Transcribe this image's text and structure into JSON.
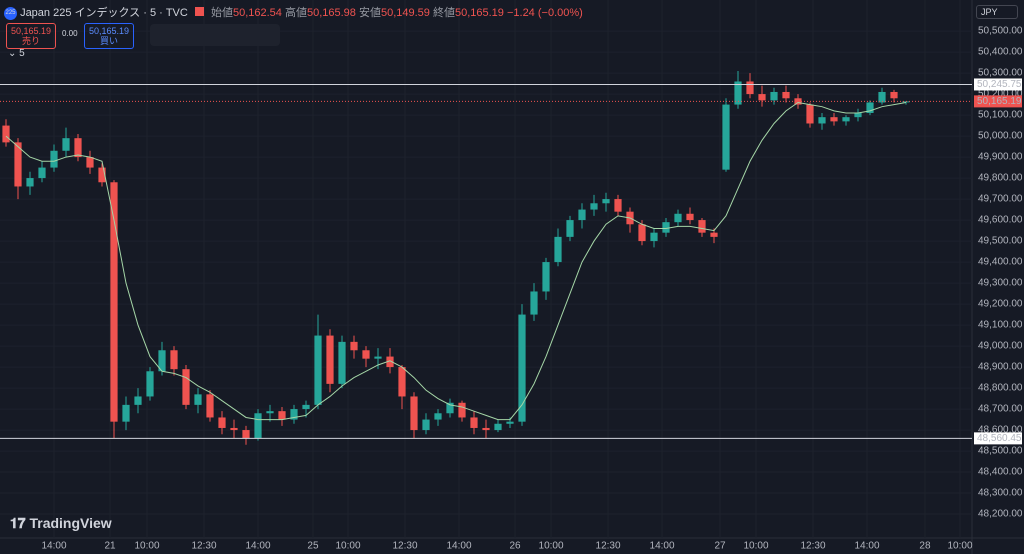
{
  "header": {
    "icon": "225",
    "symbol": "Japan 225 インデックス · 5 · TVC",
    "open_label": "始値",
    "open": "50,162.54",
    "high_label": "高値",
    "high": "50,165.98",
    "low_label": "安値",
    "low": "50,149.59",
    "close_label": "終値",
    "close": "50,165.19",
    "change": "−1.24 (−0.00%)"
  },
  "trade": {
    "sell_price": "50,165.19",
    "sell": "売り",
    "spread": "0.00",
    "buy_price": "50,165.19",
    "buy": "買い",
    "interval": "5"
  },
  "currency": "JPY",
  "logo": "TradingView",
  "chart_data": {
    "type": "candlestick",
    "up_color": "#26a69a",
    "down_color": "#ef5350",
    "ma_color": "#a5d6a7",
    "open": [
      50050,
      49970,
      49760,
      49800,
      49850,
      49930,
      49990,
      49900,
      49850,
      49780,
      48640,
      48720,
      48760,
      48880,
      48980,
      48890,
      48720,
      48770,
      48660,
      48610,
      48600,
      48560,
      48680,
      48690,
      48650,
      48700,
      48720,
      49050,
      48820,
      49020,
      48980,
      48940,
      48950,
      48900,
      48760,
      48600,
      48650,
      48680,
      48730,
      48660,
      48610,
      48600,
      48630,
      48640,
      49150,
      49260,
      49400,
      49520,
      49600,
      49650,
      49680,
      49700,
      49640,
      49580,
      49500,
      49540,
      49590,
      49630,
      49600,
      49540,
      49840,
      50150,
      50260,
      50200,
      50170,
      50210,
      50180,
      50150,
      50060,
      50090,
      50070,
      50090,
      50110,
      50160,
      50210,
      50162.54
    ],
    "high": [
      50080,
      49990,
      49830,
      49880,
      49960,
      50040,
      50010,
      49930,
      49870,
      49790,
      48760,
      48800,
      48900,
      49020,
      49000,
      48910,
      48800,
      48790,
      48690,
      48650,
      48620,
      48700,
      48720,
      48710,
      48720,
      48740,
      49150,
      49080,
      49050,
      49050,
      49000,
      48990,
      48990,
      48910,
      48780,
      48680,
      48700,
      48750,
      48740,
      48690,
      48650,
      48650,
      48660,
      49200,
      49300,
      49420,
      49560,
      49620,
      49680,
      49720,
      49730,
      49720,
      49660,
      49600,
      49560,
      49610,
      49650,
      49660,
      49610,
      49560,
      50180,
      50310,
      50300,
      50240,
      50230,
      50240,
      50200,
      50160,
      50110,
      50110,
      50100,
      50130,
      50170,
      50230,
      50220,
      50165.98
    ],
    "low": [
      49950,
      49700,
      49720,
      49780,
      49830,
      49900,
      49880,
      49820,
      49760,
      48560,
      48600,
      48680,
      48740,
      48860,
      48860,
      48700,
      48680,
      48640,
      48580,
      48560,
      48530,
      48550,
      48640,
      48620,
      48630,
      48660,
      48700,
      48780,
      48800,
      48940,
      48900,
      48890,
      48870,
      48700,
      48560,
      48580,
      48620,
      48660,
      48640,
      48580,
      48560,
      48590,
      48610,
      48620,
      49120,
      49220,
      49380,
      49500,
      49560,
      49620,
      49640,
      49620,
      49540,
      49480,
      49470,
      49520,
      49570,
      49580,
      49520,
      49490,
      49830,
      50130,
      50180,
      50140,
      50150,
      50160,
      50130,
      50040,
      50030,
      50050,
      50050,
      50070,
      50100,
      50150,
      50160,
      50149.59
    ],
    "close": [
      49970,
      49760,
      49800,
      49850,
      49930,
      49990,
      49900,
      49850,
      49780,
      48640,
      48720,
      48760,
      48880,
      48980,
      48890,
      48720,
      48770,
      48660,
      48610,
      48600,
      48560,
      48680,
      48690,
      48650,
      48700,
      48720,
      49050,
      48820,
      49020,
      48980,
      48940,
      48950,
      48900,
      48760,
      48600,
      48650,
      48680,
      48730,
      48660,
      48610,
      48600,
      48630,
      48640,
      49150,
      49260,
      49400,
      49520,
      49600,
      49650,
      49680,
      49700,
      49640,
      49580,
      49500,
      49540,
      49590,
      49630,
      49600,
      49540,
      49520,
      50150,
      50260,
      50200,
      50170,
      50210,
      50180,
      50150,
      50060,
      50090,
      50070,
      50090,
      50110,
      50160,
      50210,
      50180,
      50165.19
    ],
    "ma": [
      50000,
      49950,
      49900,
      49880,
      49880,
      49900,
      49910,
      49900,
      49880,
      49600,
      49300,
      49100,
      48950,
      48880,
      48870,
      48850,
      48810,
      48780,
      48740,
      48700,
      48660,
      48650,
      48650,
      48650,
      48660,
      48670,
      48720,
      48760,
      48810,
      48850,
      48880,
      48910,
      48930,
      48900,
      48850,
      48790,
      48750,
      48720,
      48710,
      48690,
      48670,
      48650,
      48650,
      48720,
      48820,
      48950,
      49100,
      49250,
      49400,
      49500,
      49580,
      49620,
      49610,
      49580,
      49560,
      49560,
      49570,
      49570,
      49560,
      49550,
      49620,
      49750,
      49880,
      49980,
      50060,
      50120,
      50160,
      50150,
      50140,
      50120,
      50110,
      50110,
      50120,
      50140,
      50150,
      50160
    ],
    "xlim": [
      -0.5,
      80.5
    ],
    "xticks": [
      {
        "value": 4,
        "label": "14:00"
      },
      {
        "value": 8.67,
        "label": "21"
      },
      {
        "value": 11.75,
        "label": "10:00"
      },
      {
        "value": 16.5,
        "label": "12:30"
      },
      {
        "value": 21,
        "label": "14:00"
      },
      {
        "value": 25.58,
        "label": "25"
      },
      {
        "value": 28.5,
        "label": "10:00"
      },
      {
        "value": 33.25,
        "label": "12:30"
      },
      {
        "value": 37.75,
        "label": "14:00"
      },
      {
        "value": 42.42,
        "label": "26"
      },
      {
        "value": 45.42,
        "label": "10:00"
      },
      {
        "value": 50.17,
        "label": "12:30"
      },
      {
        "value": 54.67,
        "label": "14:00"
      },
      {
        "value": 59.5,
        "label": "27"
      },
      {
        "value": 62.5,
        "label": "10:00"
      },
      {
        "value": 67.25,
        "label": "12:30"
      },
      {
        "value": 71.75,
        "label": "14:00"
      },
      {
        "value": 76.58,
        "label": "28"
      },
      {
        "value": 79.5,
        "label": "10:00"
      }
    ],
    "ylim": [
      48086,
      50648
    ],
    "yticks": [
      {
        "value": 48200,
        "label": "48,200.00"
      },
      {
        "value": 48300,
        "label": "48,300.00"
      },
      {
        "value": 48400,
        "label": "48,400.00"
      },
      {
        "value": 48500,
        "label": "48,500.00"
      },
      {
        "value": 48600,
        "label": "48,600.00"
      },
      {
        "value": 48700,
        "label": "48,700.00"
      },
      {
        "value": 48800,
        "label": "48,800.00"
      },
      {
        "value": 48900,
        "label": "48,900.00"
      },
      {
        "value": 49000,
        "label": "49,000.00"
      },
      {
        "value": 49100,
        "label": "49,100.00"
      },
      {
        "value": 49200,
        "label": "49,200.00"
      },
      {
        "value": 49300,
        "label": "49,300.00"
      },
      {
        "value": 49400,
        "label": "49,400.00"
      },
      {
        "value": 49500,
        "label": "49,500.00"
      },
      {
        "value": 49600,
        "label": "49,600.00"
      },
      {
        "value": 49700,
        "label": "49,700.00"
      },
      {
        "value": 49800,
        "label": "49,800.00"
      },
      {
        "value": 49900,
        "label": "49,900.00"
      },
      {
        "value": 50000,
        "label": "50,000.00"
      },
      {
        "value": 50100,
        "label": "50,100.00"
      },
      {
        "value": 50200,
        "label": "50,200.00"
      },
      {
        "value": 50300,
        "label": "50,300.00"
      },
      {
        "value": 50400,
        "label": "50,400.00"
      },
      {
        "value": 50500,
        "label": "50,500.00"
      }
    ],
    "hlines": [
      {
        "value": 50245.75,
        "label": "50,245.75"
      },
      {
        "value": 48560.45,
        "label": "48,560.45"
      }
    ],
    "last_price": {
      "value": 50165.19,
      "label": "50,165.19"
    }
  }
}
